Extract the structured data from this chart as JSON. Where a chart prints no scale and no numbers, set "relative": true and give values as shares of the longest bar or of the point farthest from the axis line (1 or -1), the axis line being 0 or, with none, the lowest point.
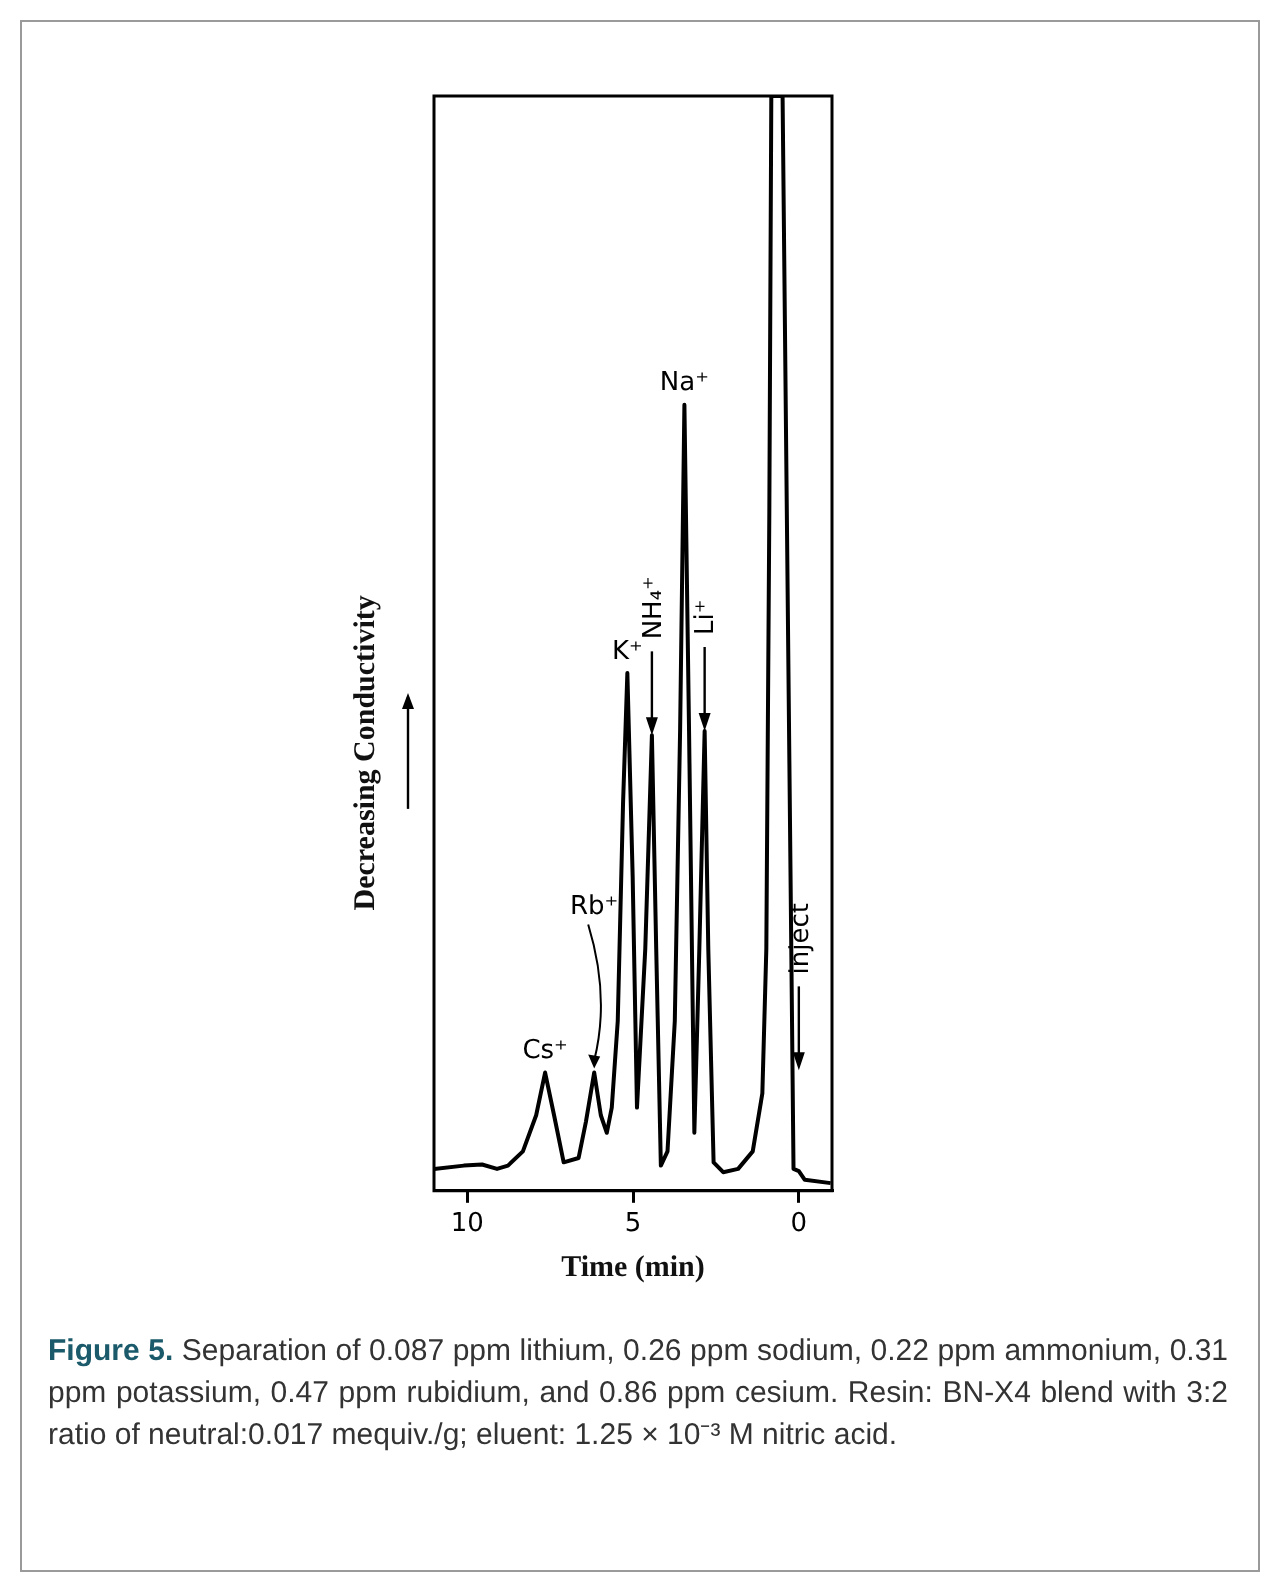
{
  "chart_data": {
    "type": "line",
    "xlabel": "Time (min)",
    "ylabel": "Decreasing Conductivity",
    "relative": true,
    "xlim": [
      11,
      -1
    ],
    "xticks": [
      10,
      5,
      0
    ],
    "grid": false,
    "legend": false,
    "marker": "none",
    "line_style": "solid",
    "series": [
      {
        "color": "#000000",
        "x": [
          11.0,
          10.1,
          9.55,
          9.1,
          8.77,
          8.32,
          7.92,
          7.65,
          7.38,
          7.09,
          6.64,
          6.42,
          6.17,
          5.97,
          5.79,
          5.64,
          5.46,
          5.3,
          5.17,
          5.01,
          4.88,
          4.63,
          4.43,
          4.3,
          4.16,
          3.96,
          3.74,
          3.58,
          3.45,
          3.31,
          3.15,
          3.0,
          2.84,
          2.73,
          2.57,
          2.28,
          1.83,
          1.39,
          1.1,
          0.98,
          0.89,
          0.83,
          0.49,
          0.16,
          0,
          -0.18,
          -0.96
        ],
        "values": [
          0.02,
          0.023,
          0.024,
          0.02,
          0.023,
          0.036,
          0.069,
          0.108,
          0.069,
          0.026,
          0.03,
          0.063,
          0.108,
          0.069,
          0.053,
          0.076,
          0.155,
          0.354,
          0.473,
          0.287,
          0.076,
          0.221,
          0.416,
          0.221,
          0.023,
          0.036,
          0.155,
          0.42,
          0.718,
          0.42,
          0.053,
          0.221,
          0.42,
          0.221,
          0.026,
          0.017,
          0.02,
          0.036,
          0.089,
          0.221,
          0.618,
          1,
          1,
          0.02,
          0.018,
          0.01,
          0.007
        ]
      }
    ],
    "annotations": [
      {
        "text": "Cs⁺",
        "x": 7.65,
        "y": 0.108
      },
      {
        "text": "Rb⁺",
        "x": 6.17,
        "y": 0.108
      },
      {
        "text": "K⁺",
        "x": 5.17,
        "y": 0.473
      },
      {
        "text": "NH₄⁺",
        "x": 4.43,
        "y": 0.416
      },
      {
        "text": "Na⁺",
        "x": 3.45,
        "y": 0.718
      },
      {
        "text": "Li⁺",
        "x": 2.84,
        "y": 0.42
      },
      {
        "text": "inject",
        "x": 0,
        "y": 0.11
      },
      "Figure 5.",
      "Separation of 0.087 ppm lithium, 0.26 ppm sodium, 0.22 ppm ammonium, 0.31 ppm potassium, 0.47 ppm rubidium, and 0.86 ppm cesium. Resin: BN-X4 blend with 3:2 ratio of neutral:0.017 mequiv./g; eluent: 1.25 × 10⁻³ M nitric acid."
    ]
  }
}
